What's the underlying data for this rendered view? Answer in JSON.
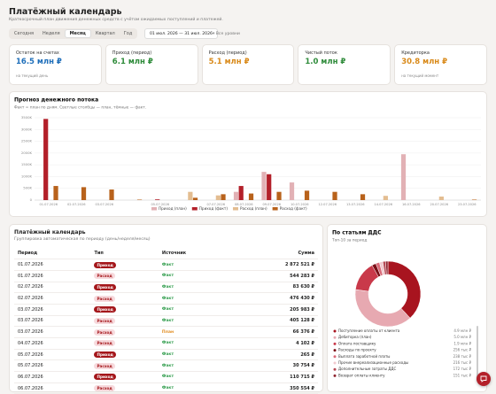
{
  "header": {
    "title": "Платёжный календарь",
    "subtitle": "Краткосрочный план движения денежных средств с учётом ожидаемых поступлений и платежей."
  },
  "toolbar": {
    "tabs": [
      {
        "label": "Сегодня"
      },
      {
        "label": "Неделя"
      },
      {
        "label": "Месяц",
        "active": true
      },
      {
        "label": "Квартал"
      },
      {
        "label": "Год"
      }
    ],
    "date_range": "01 июл. 2026 — 31 июл. 2026",
    "level": "Все уровни"
  },
  "kpis": [
    {
      "label": "Остаток на счетах",
      "value": "16.5 млн ₽",
      "note": "на текущий день",
      "color": "#1f6fba"
    },
    {
      "label": "Приход (период)",
      "value": "6.1 млн ₽",
      "color": "#2e8b3a"
    },
    {
      "label": "Расход (период)",
      "value": "5.1 млн ₽",
      "color": "#d98a1a"
    },
    {
      "label": "Чистый поток",
      "value": "1.0 млн ₽",
      "color": "#2e8b3a"
    },
    {
      "label": "Кредиторка",
      "value": "30.8 млн ₽",
      "note": "на текущий момент",
      "color": "#d98a1a"
    }
  ],
  "chart_data": [
    {
      "type": "bar",
      "title": "Прогноз денежного потока",
      "subtitle": "Факт = план по дням. Светлые столбцы — план, тёмные — факт.",
      "categories": [
        "01.07.2026",
        "02.07.2026",
        "03.07.2026",
        null,
        "05.07.2026",
        null,
        "07.07.2026",
        "08.07.2026",
        "09.07.2026",
        "10.07.2026",
        "12.07.2026",
        "13.07.2026",
        "14.07.2026",
        "16.07.2026",
        "20.07.2026",
        "23.07.2026"
      ],
      "series": [
        {
          "name": "Приход (план)",
          "color": "#e2b1b5",
          "values": [
            0,
            0,
            0,
            0,
            0,
            0,
            0,
            350,
            1200,
            750,
            0,
            0,
            0,
            1950,
            0,
            0
          ]
        },
        {
          "name": "Приход (факт)",
          "color": "#b3202a",
          "values": [
            3450,
            0,
            0,
            0,
            30,
            0,
            0,
            600,
            1100,
            0,
            0,
            0,
            0,
            0,
            0,
            0
          ]
        },
        {
          "name": "Расход (план)",
          "color": "#e3bd91",
          "values": [
            0,
            0,
            0,
            0,
            0,
            350,
            200,
            0,
            0,
            0,
            0,
            0,
            180,
            0,
            150,
            0
          ]
        },
        {
          "name": "Расход (факт)",
          "color": "#b8621b",
          "values": [
            600,
            550,
            450,
            20,
            0,
            100,
            250,
            280,
            350,
            400,
            350,
            250,
            0,
            0,
            0,
            20
          ]
        }
      ],
      "ylim": [
        0,
        3500
      ],
      "yticks": [
        0,
        {
          "value": 500,
          "label": "500K"
        },
        {
          "value": 1000,
          "label": "1000K"
        },
        {
          "value": 1500,
          "label": "1500K"
        },
        {
          "value": 2000,
          "label": "2000K"
        },
        {
          "value": 2500,
          "label": "2500K"
        },
        {
          "value": 3000,
          "label": "3000K"
        },
        {
          "value": 3500,
          "label": "3500K"
        }
      ],
      "grid": true
    },
    {
      "type": "pie",
      "title": "По статьям ДДС",
      "subtitle": "Топ-10 за период",
      "categories": [
        "Поступление оплаты от клиента",
        "Дебиторка (план)",
        "Оплата поставщику",
        "Расходы по проекту",
        "Выплата заработной платы",
        "Прочие внереализационные расходы",
        "Дополнительные затраты ДДС",
        "Возврат оплаты клиенту"
      ],
      "values": [
        4900000,
        5000000,
        1900000,
        256000,
        238000,
        216000,
        172000,
        151000
      ],
      "value_labels": [
        "4.9 млн ₽",
        "5.0 млн ₽",
        "1.9 млн ₽",
        "256 тыс ₽",
        "238 тыс ₽",
        "216 тыс ₽",
        "172 тыс ₽",
        "151 тыс ₽"
      ],
      "colors": [
        "#a8141f",
        "#e7a9b1",
        "#c9394a",
        "#7a0f17",
        "#d96a78",
        "#f0c9ce",
        "#b54a55",
        "#8f2530"
      ]
    }
  ],
  "table": {
    "title": "Платёжный календарь",
    "subtitle": "Группировка автоматическая по периоду (день/неделя/месяц)",
    "columns": [
      "Период",
      "Тип",
      "Источник",
      "Сумма"
    ],
    "rows": [
      {
        "period": "01.07.2026",
        "type": "Приход",
        "source": "Факт",
        "amount": "2 872 521 ₽",
        "badge_bg": "#a4161a",
        "badge_fg": "#ffffff",
        "source_color": "#2e9c4a"
      },
      {
        "period": "01.07.2026",
        "type": "Расход",
        "source": "Факт",
        "amount": "544 283 ₽",
        "badge_bg": "#f7dadd",
        "badge_fg": "#a4161a",
        "source_color": "#2e9c4a"
      },
      {
        "period": "02.07.2026",
        "type": "Приход",
        "source": "Факт",
        "amount": "83 630 ₽",
        "badge_bg": "#a4161a",
        "badge_fg": "#ffffff",
        "source_color": "#2e9c4a"
      },
      {
        "period": "02.07.2026",
        "type": "Расход",
        "source": "Факт",
        "amount": "476 430 ₽",
        "badge_bg": "#f7dadd",
        "badge_fg": "#a4161a",
        "source_color": "#2e9c4a"
      },
      {
        "period": "03.07.2026",
        "type": "Приход",
        "source": "Факт",
        "amount": "205 983 ₽",
        "badge_bg": "#a4161a",
        "badge_fg": "#ffffff",
        "source_color": "#2e9c4a"
      },
      {
        "period": "03.07.2026",
        "type": "Расход",
        "source": "Факт",
        "amount": "405 128 ₽",
        "badge_bg": "#f7dadd",
        "badge_fg": "#a4161a",
        "source_color": "#2e9c4a"
      },
      {
        "period": "03.07.2026",
        "type": "Расход",
        "source": "План",
        "amount": "66 376 ₽",
        "badge_bg": "#f7dadd",
        "badge_fg": "#a4161a",
        "source_color": "#e08a1c"
      },
      {
        "period": "04.07.2026",
        "type": "Расход",
        "source": "Факт",
        "amount": "4 102 ₽",
        "badge_bg": "#f7dadd",
        "badge_fg": "#a4161a",
        "source_color": "#2e9c4a"
      },
      {
        "period": "05.07.2026",
        "type": "Приход",
        "source": "Факт",
        "amount": "265 ₽",
        "badge_bg": "#a4161a",
        "badge_fg": "#ffffff",
        "source_color": "#2e9c4a"
      },
      {
        "period": "05.07.2026",
        "type": "Расход",
        "source": "Факт",
        "amount": "30 754 ₽",
        "badge_bg": "#f7dadd",
        "badge_fg": "#a4161a",
        "source_color": "#2e9c4a"
      },
      {
        "period": "06.07.2026",
        "type": "Приход",
        "source": "Факт",
        "amount": "110 715 ₽",
        "badge_bg": "#a4161a",
        "badge_fg": "#ffffff",
        "source_color": "#2e9c4a"
      },
      {
        "period": "06.07.2026",
        "type": "Расход",
        "source": "Факт",
        "amount": "350 554 ₽",
        "badge_bg": "#f7dadd",
        "badge_fg": "#a4161a",
        "source_color": "#2e9c4a"
      }
    ]
  }
}
